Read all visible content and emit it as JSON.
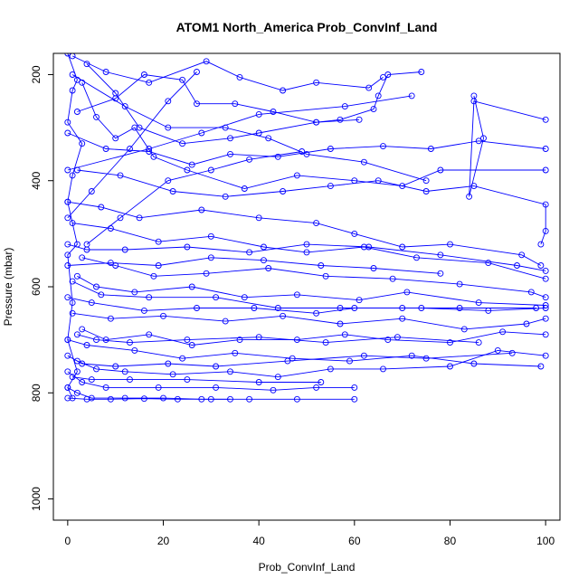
{
  "chart_data": {
    "type": "line",
    "title": "ATOM1 North_America Prob_ConvInf_Land",
    "xlabel": "Prob_ConvInf_Land",
    "ylabel": "Pressure (mbar)",
    "xlim": [
      -3,
      103
    ],
    "ylim": [
      1040,
      160
    ],
    "y_reversed": true,
    "x_ticks": [
      0,
      20,
      40,
      60,
      80,
      100
    ],
    "y_ticks": [
      200,
      400,
      600,
      800,
      1000
    ],
    "series_color": "#0000ff",
    "marker": "open-circle",
    "grid": false,
    "series": [
      {
        "values": [
          [
            0,
            160
          ],
          [
            2,
            210
          ],
          [
            1,
            230
          ],
          [
            0,
            290
          ],
          [
            3,
            330
          ],
          [
            1,
            390
          ],
          [
            0,
            440
          ],
          [
            2,
            520
          ],
          [
            0,
            540
          ],
          [
            1,
            630
          ],
          [
            0,
            700
          ],
          [
            2,
            760
          ],
          [
            0,
            790
          ],
          [
            1,
            810
          ]
        ]
      },
      {
        "values": [
          [
            4,
            180
          ],
          [
            10,
            235
          ],
          [
            15,
            300
          ],
          [
            24,
            330
          ],
          [
            34,
            320
          ],
          [
            40,
            310
          ],
          [
            52,
            290
          ],
          [
            57,
            285
          ],
          [
            64,
            265
          ],
          [
            65,
            240
          ],
          [
            67,
            200
          ],
          [
            74,
            195
          ]
        ]
      },
      {
        "values": [
          [
            1,
            165
          ],
          [
            8,
            195
          ],
          [
            17,
            215
          ],
          [
            29,
            175
          ],
          [
            36,
            205
          ],
          [
            45,
            230
          ],
          [
            52,
            215
          ],
          [
            63,
            225
          ],
          [
            66,
            205
          ]
        ]
      },
      {
        "values": [
          [
            3,
            215
          ],
          [
            6,
            280
          ],
          [
            10,
            320
          ],
          [
            14,
            300
          ],
          [
            18,
            355
          ],
          [
            25,
            380
          ],
          [
            37,
            415
          ],
          [
            48,
            390
          ],
          [
            60,
            400
          ],
          [
            70,
            410
          ],
          [
            78,
            380
          ],
          [
            100,
            380
          ]
        ]
      },
      {
        "values": [
          [
            0,
            310
          ],
          [
            8,
            340
          ],
          [
            17,
            345
          ],
          [
            26,
            370
          ],
          [
            34,
            350
          ],
          [
            44,
            355
          ],
          [
            55,
            340
          ],
          [
            66,
            335
          ],
          [
            76,
            340
          ],
          [
            86,
            325
          ],
          [
            100,
            340
          ]
        ]
      },
      {
        "values": [
          [
            2,
            380
          ],
          [
            11,
            390
          ],
          [
            22,
            420
          ],
          [
            33,
            430
          ],
          [
            45,
            420
          ],
          [
            55,
            410
          ],
          [
            65,
            400
          ],
          [
            75,
            420
          ],
          [
            85,
            410
          ],
          [
            100,
            445
          ],
          [
            100,
            495
          ],
          [
            99,
            520
          ]
        ]
      },
      {
        "values": [
          [
            0,
            440
          ],
          [
            7,
            450
          ],
          [
            15,
            470
          ],
          [
            28,
            455
          ],
          [
            40,
            470
          ],
          [
            52,
            480
          ],
          [
            60,
            500
          ],
          [
            70,
            525
          ],
          [
            80,
            520
          ],
          [
            95,
            540
          ],
          [
            99,
            560
          ]
        ]
      },
      {
        "values": [
          [
            1,
            480
          ],
          [
            9,
            490
          ],
          [
            19,
            515
          ],
          [
            30,
            505
          ],
          [
            41,
            525
          ],
          [
            50,
            535
          ],
          [
            62,
            525
          ],
          [
            73,
            545
          ],
          [
            88,
            555
          ],
          [
            100,
            585
          ]
        ]
      },
      {
        "values": [
          [
            0,
            520
          ],
          [
            4,
            530
          ],
          [
            12,
            530
          ],
          [
            25,
            525
          ],
          [
            38,
            535
          ],
          [
            50,
            520
          ],
          [
            63,
            525
          ],
          [
            78,
            540
          ],
          [
            94,
            560
          ],
          [
            100,
            570
          ]
        ]
      },
      {
        "values": [
          [
            3,
            545
          ],
          [
            10,
            560
          ],
          [
            18,
            580
          ],
          [
            29,
            575
          ],
          [
            42,
            565
          ],
          [
            54,
            580
          ],
          [
            68,
            585
          ],
          [
            82,
            595
          ],
          [
            97,
            610
          ],
          [
            100,
            620
          ]
        ]
      },
      {
        "values": [
          [
            2,
            580
          ],
          [
            6,
            600
          ],
          [
            14,
            610
          ],
          [
            26,
            600
          ],
          [
            37,
            620
          ],
          [
            48,
            615
          ],
          [
            61,
            625
          ],
          [
            71,
            610
          ],
          [
            86,
            630
          ],
          [
            100,
            635
          ]
        ]
      },
      {
        "values": [
          [
            0,
            620
          ],
          [
            5,
            630
          ],
          [
            16,
            645
          ],
          [
            27,
            640
          ],
          [
            39,
            640
          ],
          [
            52,
            650
          ],
          [
            60,
            640
          ],
          [
            74,
            640
          ],
          [
            88,
            645
          ],
          [
            100,
            640
          ]
        ]
      },
      {
        "values": [
          [
            1,
            650
          ],
          [
            9,
            660
          ],
          [
            20,
            655
          ],
          [
            33,
            665
          ],
          [
            45,
            655
          ],
          [
            57,
            670
          ],
          [
            70,
            660
          ],
          [
            83,
            680
          ],
          [
            96,
            670
          ],
          [
            100,
            660
          ]
        ]
      },
      {
        "values": [
          [
            3,
            680
          ],
          [
            8,
            700
          ],
          [
            17,
            690
          ],
          [
            26,
            710
          ],
          [
            36,
            700
          ],
          [
            48,
            700
          ],
          [
            58,
            690
          ],
          [
            67,
            700
          ],
          [
            80,
            705
          ],
          [
            91,
            685
          ],
          [
            100,
            690
          ]
        ]
      },
      {
        "values": [
          [
            0,
            700
          ],
          [
            4,
            710
          ],
          [
            14,
            720
          ],
          [
            24,
            735
          ],
          [
            35,
            725
          ],
          [
            47,
            735
          ],
          [
            59,
            740
          ],
          [
            72,
            730
          ],
          [
            85,
            745
          ],
          [
            99,
            750
          ]
        ]
      },
      {
        "values": [
          [
            2,
            740
          ],
          [
            6,
            755
          ],
          [
            12,
            760
          ],
          [
            22,
            765
          ],
          [
            34,
            760
          ],
          [
            44,
            770
          ],
          [
            55,
            755
          ],
          [
            66,
            755
          ],
          [
            80,
            750
          ],
          [
            90,
            720
          ],
          [
            100,
            730
          ]
        ]
      },
      {
        "values": [
          [
            0,
            760
          ],
          [
            3,
            780
          ],
          [
            8,
            790
          ],
          [
            19,
            790
          ],
          [
            31,
            790
          ],
          [
            43,
            795
          ],
          [
            52,
            790
          ],
          [
            60,
            790
          ]
        ]
      },
      {
        "values": [
          [
            0,
            790
          ],
          [
            2,
            800
          ],
          [
            5,
            810
          ],
          [
            12,
            810
          ],
          [
            20,
            810
          ],
          [
            28,
            812
          ],
          [
            38,
            812
          ],
          [
            48,
            812
          ],
          [
            60,
            812
          ]
        ]
      },
      {
        "values": [
          [
            0,
            810
          ],
          [
            4,
            812
          ],
          [
            9,
            812
          ],
          [
            16,
            811
          ],
          [
            23,
            812
          ],
          [
            30,
            812
          ],
          [
            34,
            812
          ]
        ]
      },
      {
        "values": [
          [
            85,
            240
          ],
          [
            87,
            320
          ],
          [
            84,
            430
          ],
          [
            85,
            250
          ],
          [
            100,
            285
          ]
        ]
      },
      {
        "values": [
          [
            0,
            380
          ],
          [
            17,
            340
          ],
          [
            28,
            310
          ],
          [
            40,
            275
          ],
          [
            58,
            260
          ],
          [
            72,
            240
          ]
        ]
      },
      {
        "values": [
          [
            1,
            200
          ],
          [
            12,
            260
          ],
          [
            21,
            300
          ],
          [
            33,
            300
          ],
          [
            42,
            320
          ],
          [
            50,
            350
          ],
          [
            62,
            365
          ],
          [
            75,
            400
          ]
        ]
      },
      {
        "values": [
          [
            2,
            270
          ],
          [
            10,
            245
          ],
          [
            16,
            200
          ],
          [
            24,
            210
          ],
          [
            27,
            255
          ],
          [
            35,
            255
          ],
          [
            43,
            270
          ],
          [
            52,
            290
          ],
          [
            61,
            285
          ]
        ]
      },
      {
        "values": [
          [
            0,
            470
          ],
          [
            5,
            420
          ],
          [
            13,
            340
          ],
          [
            21,
            250
          ],
          [
            27,
            195
          ]
        ]
      },
      {
        "values": [
          [
            4,
            520
          ],
          [
            11,
            470
          ],
          [
            21,
            400
          ],
          [
            30,
            380
          ],
          [
            38,
            360
          ],
          [
            49,
            345
          ]
        ]
      },
      {
        "values": [
          [
            0,
            560
          ],
          [
            9,
            555
          ],
          [
            19,
            560
          ],
          [
            30,
            545
          ],
          [
            41,
            550
          ],
          [
            53,
            560
          ],
          [
            64,
            565
          ],
          [
            78,
            575
          ]
        ]
      },
      {
        "values": [
          [
            1,
            590
          ],
          [
            7,
            615
          ],
          [
            17,
            620
          ],
          [
            31,
            620
          ],
          [
            44,
            640
          ],
          [
            57,
            640
          ],
          [
            70,
            640
          ],
          [
            82,
            640
          ],
          [
            98,
            640
          ]
        ]
      },
      {
        "values": [
          [
            2,
            690
          ],
          [
            6,
            700
          ],
          [
            13,
            705
          ],
          [
            25,
            700
          ],
          [
            40,
            695
          ],
          [
            54,
            705
          ],
          [
            69,
            695
          ],
          [
            86,
            705
          ]
        ]
      },
      {
        "values": [
          [
            0,
            730
          ],
          [
            3,
            745
          ],
          [
            10,
            750
          ],
          [
            21,
            745
          ],
          [
            31,
            750
          ],
          [
            46,
            740
          ],
          [
            62,
            730
          ],
          [
            75,
            735
          ],
          [
            93,
            725
          ]
        ]
      },
      {
        "values": [
          [
            1,
            770
          ],
          [
            5,
            775
          ],
          [
            13,
            775
          ],
          [
            25,
            775
          ],
          [
            40,
            780
          ],
          [
            53,
            780
          ]
        ]
      }
    ]
  }
}
